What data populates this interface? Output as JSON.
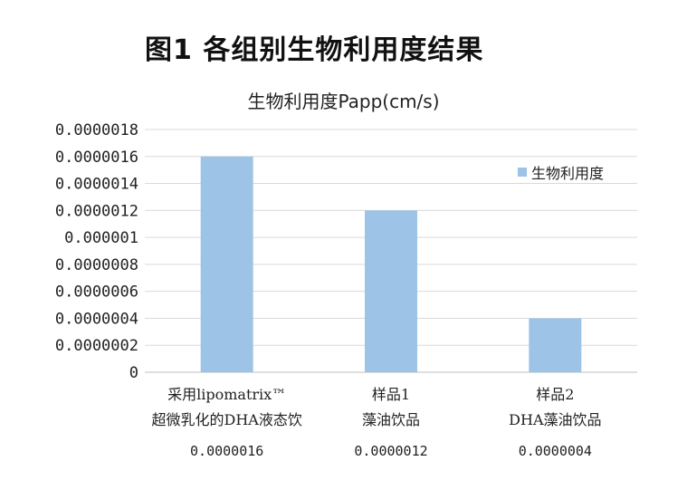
{
  "figure_title": "图1  各组别生物利用度结果",
  "colors": {
    "bar": "#9DC3E6",
    "grid": "#d9d9d9",
    "axis": "#bfbfbf"
  },
  "chart_data": {
    "type": "bar",
    "title": "生物利用度Papp(cm/s)",
    "categories": [
      [
        "采用lipomatrix™",
        "超微乳化的DHA液态饮"
      ],
      [
        "样品1",
        "藻油饮品"
      ],
      [
        "样品2",
        "DHA藻油饮品"
      ]
    ],
    "series": [
      {
        "name": "生物利用度",
        "values": [
          1.6e-06,
          1.2e-06,
          4e-07
        ]
      }
    ],
    "value_labels": [
      "0.0000016",
      "0.0000012",
      "0.0000004"
    ],
    "y_ticks": [
      "0",
      "0.0000002",
      "0.0000004",
      "0.0000006",
      "0.0000008",
      "0.000001",
      "0.0000012",
      "0.0000014",
      "0.0000016",
      "0.0000018"
    ],
    "ylim": [
      0,
      1.8e-06
    ],
    "grid": true,
    "legend_position": "right"
  }
}
